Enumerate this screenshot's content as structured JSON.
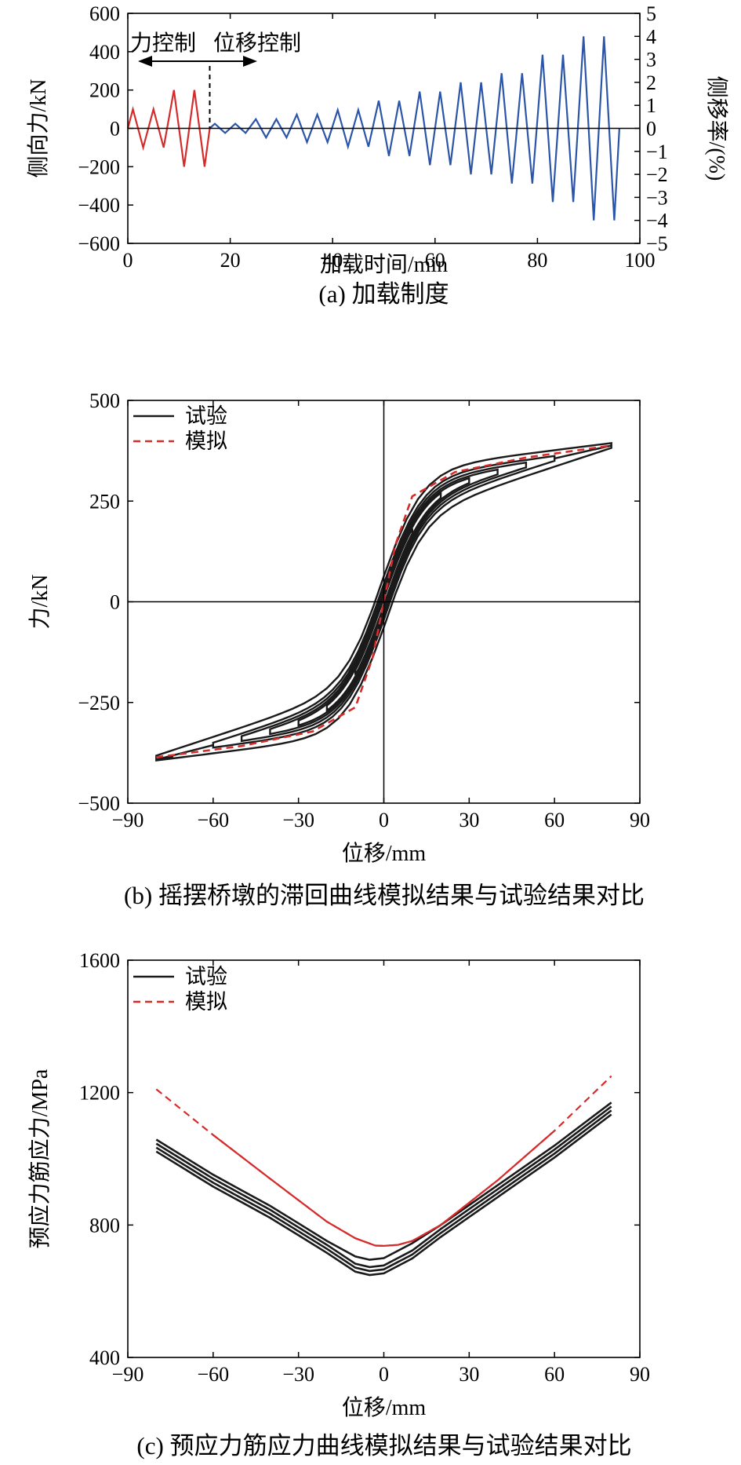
{
  "chart_data": [
    {
      "type": "line",
      "caption": "(a) 加载制度",
      "xlabel": "加载时间/min",
      "ylabel": "侧向力/kN",
      "y2label": "侧移率/(%)",
      "xlim": [
        0,
        100
      ],
      "ylim": [
        -600,
        600
      ],
      "y2lim": [
        -5,
        5
      ],
      "xticks": [
        0,
        20,
        40,
        60,
        80,
        100
      ],
      "yticks": [
        -600,
        -400,
        -200,
        0,
        200,
        400,
        600
      ],
      "y2ticks": [
        -5,
        -4,
        -3,
        -2,
        -1,
        0,
        1,
        2,
        3,
        4,
        5
      ],
      "annotations": {
        "force_control": "力控制",
        "disp_control": "位移控制",
        "switch_time": 16
      },
      "colors": {
        "force_control": "#d62b2b",
        "disp_control": "#2b55a8"
      },
      "series": [
        {
          "x": [
            0,
            1,
            3,
            5,
            7,
            9,
            11,
            13,
            15,
            16
          ],
          "y": [
            0,
            100,
            -100,
            100,
            -100,
            200,
            -200,
            200,
            -200,
            0
          ]
        },
        {
          "x": [
            16,
            17,
            19,
            21,
            23,
            25,
            27,
            29,
            31,
            33,
            35,
            37,
            39,
            41,
            43,
            45,
            47,
            49,
            51,
            53,
            55,
            57,
            59,
            61,
            63,
            65,
            67,
            69,
            71,
            73,
            75,
            77,
            79,
            81,
            83,
            85,
            87,
            89,
            91,
            93,
            95,
            96
          ],
          "y": [
            0,
            24,
            -24,
            24,
            -24,
            48,
            -48,
            48,
            -48,
            72,
            -72,
            72,
            -72,
            96,
            -96,
            96,
            -96,
            144,
            -144,
            144,
            -144,
            192,
            -192,
            192,
            -192,
            240,
            -240,
            240,
            -240,
            288,
            -288,
            288,
            -288,
            384,
            -384,
            384,
            -384,
            480,
            -480,
            480,
            -480,
            0
          ]
        }
      ]
    },
    {
      "type": "line",
      "caption": "(b) 摇摆桥墩的滞回曲线模拟结果与试验结果对比",
      "xlabel": "位移/mm",
      "ylabel": "力/kN",
      "xlim": [
        -90,
        90
      ],
      "ylim": [
        -500,
        500
      ],
      "xticks": [
        -90,
        -60,
        -30,
        0,
        30,
        60,
        90
      ],
      "yticks": [
        -500,
        -250,
        0,
        250,
        500
      ],
      "legend": [
        "试验",
        "模拟"
      ],
      "legend_position": "top-left",
      "colors": {
        "test": "#1a1a1a",
        "sim": "#d62b2b"
      },
      "series": [
        {
          "name": "试验",
          "amplitudes": [
            10,
            20,
            30,
            40,
            50,
            60,
            80
          ],
          "F_max": 388,
          "F_min": -392
        },
        {
          "name": "模拟",
          "x": [
            -80,
            -50,
            -25,
            -10,
            -4,
            0,
            4,
            10,
            25,
            50,
            80
          ],
          "y": [
            -386,
            -358,
            -322,
            -262,
            -140,
            0,
            140,
            262,
            322,
            358,
            388
          ]
        }
      ]
    },
    {
      "type": "line",
      "caption": "(c) 预应力筋应力曲线模拟结果与试验结果对比",
      "xlabel": "位移/mm",
      "ylabel": "预应力筋应力/MPa",
      "xlim": [
        -90,
        90
      ],
      "ylim": [
        400,
        1600
      ],
      "xticks": [
        -90,
        -60,
        -30,
        0,
        30,
        60,
        90
      ],
      "yticks": [
        400,
        800,
        1200,
        1600
      ],
      "legend": [
        "试验",
        "模拟"
      ],
      "legend_position": "top-left",
      "colors": {
        "test": "#1a1a1a",
        "sim": "#d62b2b"
      },
      "series": [
        {
          "name": "试验",
          "x": [
            -80,
            -60,
            -50,
            -40,
            -30,
            -20,
            -10,
            -5,
            0,
            10,
            20,
            30,
            40,
            50,
            60,
            80
          ],
          "y": [
            1058,
            952,
            905,
            858,
            805,
            752,
            705,
            695,
            700,
            745,
            800,
            860,
            920,
            980,
            1040,
            1170
          ]
        },
        {
          "name": "模拟",
          "x": [
            -80,
            -60,
            -40,
            -20,
            -10,
            -3,
            0,
            5,
            10,
            20,
            40,
            60,
            80
          ],
          "y": [
            1210,
            1072,
            940,
            810,
            760,
            738,
            737,
            740,
            752,
            800,
            935,
            1085,
            1250
          ]
        }
      ]
    }
  ]
}
